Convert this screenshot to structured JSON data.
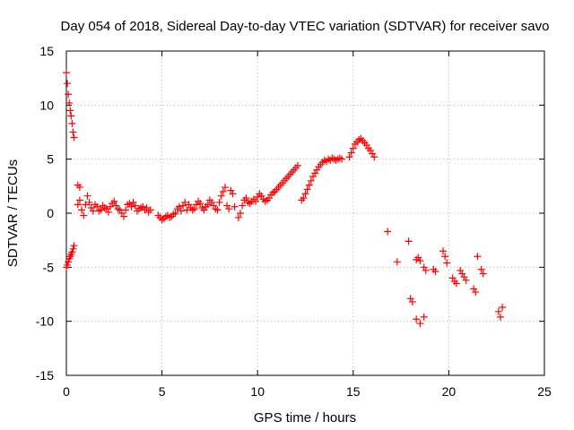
{
  "chart_data": {
    "type": "scatter",
    "title": "Day 054 of 2018, Sidereal Day-to-day VTEC variation (SDTVAR) for receiver savo",
    "xlabel": "GPS time / hours",
    "ylabel": "SDTVAR / TECUs",
    "xlim": [
      0,
      25
    ],
    "ylim": [
      -15,
      15
    ],
    "xticks": [
      0,
      5,
      10,
      15,
      20,
      25
    ],
    "yticks": [
      -15,
      -10,
      -5,
      0,
      5,
      10,
      15
    ],
    "xtick_labels": [
      "0",
      "5",
      "10",
      "15",
      "20",
      "25"
    ],
    "ytick_labels": [
      "-15",
      "-10",
      "-5",
      "0",
      "5",
      "10",
      "15"
    ],
    "grid": true,
    "marker": "+",
    "color": "#ff0000",
    "series": [
      {
        "name": "SDTVAR",
        "x": [
          0.0,
          0.05,
          0.1,
          0.15,
          0.2,
          0.25,
          0.3,
          0.35,
          0.4,
          0.0,
          0.05,
          0.1,
          0.15,
          0.2,
          0.25,
          0.3,
          0.35,
          0.4,
          0.6,
          0.7,
          0.6,
          0.7,
          0.8,
          0.9,
          1.0,
          1.1,
          1.2,
          1.3,
          1.4,
          1.5,
          1.6,
          1.7,
          1.8,
          1.9,
          2.0,
          2.1,
          2.2,
          2.3,
          2.4,
          2.5,
          2.6,
          2.7,
          2.8,
          2.9,
          3.0,
          3.1,
          3.2,
          3.3,
          3.4,
          3.5,
          3.6,
          3.7,
          3.8,
          3.9,
          4.0,
          4.1,
          4.2,
          4.3,
          4.4,
          4.8,
          4.9,
          5.0,
          5.1,
          5.2,
          5.3,
          5.4,
          5.5,
          5.6,
          5.7,
          5.8,
          5.9,
          6.0,
          6.1,
          6.2,
          6.3,
          6.4,
          6.5,
          6.6,
          6.7,
          6.8,
          6.9,
          7.0,
          7.1,
          7.2,
          7.3,
          7.4,
          7.5,
          7.6,
          7.7,
          7.8,
          7.9,
          8.0,
          8.1,
          8.2,
          8.3,
          8.4,
          8.5,
          8.6,
          8.7,
          8.8,
          9.0,
          9.1,
          9.2,
          9.3,
          9.4,
          9.5,
          9.6,
          9.7,
          9.8,
          9.9,
          10.0,
          10.1,
          10.2,
          10.3,
          10.4,
          10.5,
          10.6,
          10.7,
          10.8,
          10.9,
          11.0,
          11.1,
          11.2,
          11.3,
          11.4,
          11.5,
          11.6,
          11.7,
          11.8,
          11.9,
          12.0,
          12.1,
          12.3,
          12.4,
          12.5,
          12.6,
          12.7,
          12.8,
          12.9,
          13.0,
          13.1,
          13.2,
          13.3,
          13.4,
          13.5,
          13.6,
          13.7,
          13.8,
          13.9,
          14.0,
          14.1,
          14.2,
          14.3,
          14.4,
          14.8,
          14.9,
          15.0,
          15.1,
          15.2,
          15.3,
          15.4,
          15.5,
          15.6,
          15.7,
          15.8,
          15.9,
          16.0,
          16.1,
          16.8,
          17.3,
          17.9,
          18.0,
          18.1,
          18.3,
          18.4,
          18.5,
          18.7,
          18.8,
          18.3,
          18.5,
          18.7,
          19.2,
          19.3,
          19.7,
          19.8,
          19.9,
          20.2,
          20.3,
          20.4,
          20.6,
          20.7,
          20.8,
          20.9,
          21.3,
          21.4,
          21.5,
          21.7,
          21.8,
          22.6,
          22.7,
          22.8
        ],
        "y": [
          13.0,
          12.0,
          11.0,
          10.2,
          9.5,
          9.0,
          8.3,
          7.5,
          7.0,
          -5.0,
          -4.8,
          -4.5,
          -4.2,
          -4.0,
          -3.8,
          -3.6,
          -3.3,
          -3.0,
          2.6,
          2.4,
          0.8,
          1.2,
          0.3,
          -0.2,
          0.8,
          1.6,
          1.0,
          0.5,
          0.2,
          0.8,
          0.6,
          0.2,
          0.3,
          0.7,
          0.5,
          0.4,
          0.1,
          0.6,
          0.9,
          1.1,
          0.7,
          0.4,
          0.3,
          0.0,
          -0.3,
          0.3,
          0.8,
          0.9,
          0.6,
          1.0,
          0.7,
          0.2,
          0.4,
          0.5,
          0.6,
          0.3,
          0.5,
          0.1,
          0.3,
          -0.2,
          -0.4,
          -0.6,
          -0.5,
          -0.3,
          -0.2,
          -0.4,
          -0.3,
          -0.1,
          0.0,
          0.4,
          0.6,
          0.2,
          0.7,
          1.0,
          0.3,
          0.8,
          0.5,
          0.3,
          0.4,
          0.8,
          1.1,
          0.9,
          0.5,
          0.3,
          0.6,
          0.8,
          1.2,
          1.0,
          0.7,
          0.4,
          0.3,
          1.0,
          1.6,
          2.0,
          2.4,
          0.7,
          0.4,
          2.1,
          1.8,
          0.6,
          -0.4,
          0.0,
          0.7,
          1.2,
          1.4,
          1.0,
          0.9,
          1.1,
          1.3,
          1.1,
          1.5,
          1.8,
          1.6,
          1.3,
          1.1,
          1.2,
          1.4,
          1.7,
          1.9,
          2.0,
          2.2,
          2.4,
          2.6,
          2.8,
          3.0,
          3.2,
          3.4,
          3.6,
          3.8,
          4.0,
          4.2,
          4.4,
          1.2,
          1.4,
          1.8,
          2.2,
          2.6,
          3.0,
          3.4,
          3.7,
          4.0,
          4.3,
          4.5,
          4.7,
          4.9,
          4.8,
          5.0,
          4.9,
          5.1,
          5.0,
          4.9,
          5.0,
          5.1,
          5.0,
          5.2,
          5.6,
          6.0,
          6.4,
          6.6,
          6.8,
          6.9,
          6.7,
          6.5,
          6.3,
          6.0,
          5.8,
          5.5,
          5.2,
          -1.7,
          -4.5,
          -2.6,
          -7.9,
          -8.2,
          -4.3,
          -4.1,
          -4.4,
          -5.0,
          -5.3,
          -9.8,
          -10.2,
          -9.6,
          -5.2,
          -5.4,
          -3.5,
          -4.0,
          -4.6,
          -6.0,
          -6.3,
          -6.5,
          -5.3,
          -5.6,
          -5.9,
          -6.2,
          -7.0,
          -7.3,
          -4.0,
          -5.2,
          -5.6,
          -9.1,
          -9.6,
          -8.7
        ]
      }
    ]
  }
}
